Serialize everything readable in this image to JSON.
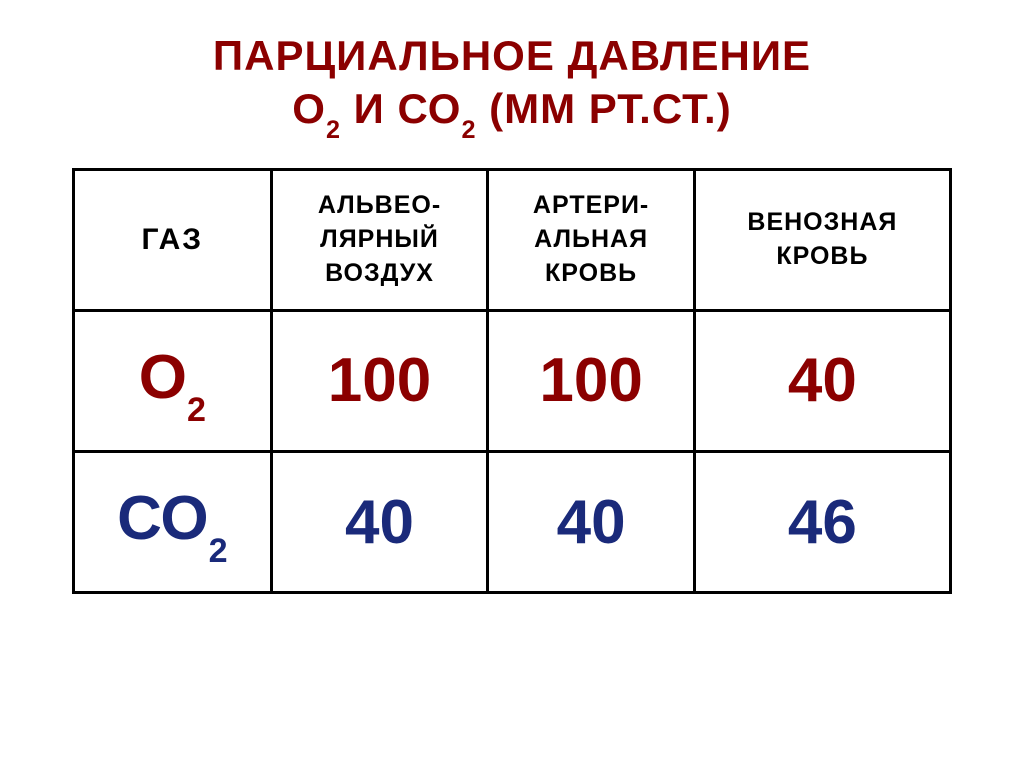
{
  "title": {
    "line1": "ПАРЦИАЛЬНОЕ ДАВЛЕНИЕ",
    "line2_pre": "О",
    "line2_o2_sub": "2",
    "line2_mid": " И СО",
    "line2_co2_sub": "2",
    "line2_post": " (ММ РТ.СТ.)",
    "color": "#8b0000",
    "fontsize": 42
  },
  "table": {
    "border_color": "#000000",
    "border_width": 3,
    "header_color": "#000000",
    "header_fontsize": 25,
    "gas_header_fontsize": 30,
    "cell_fontsize": 62,
    "columns": [
      {
        "label_lines": [
          "ГАЗ"
        ]
      },
      {
        "label_lines": [
          "АЛЬВЕО-",
          "ЛЯРНЫЙ",
          "ВОЗДУХ"
        ]
      },
      {
        "label_lines": [
          "АРТЕРИ-",
          "АЛЬНАЯ",
          "КРОВЬ"
        ]
      },
      {
        "label_lines": [
          "ВЕНОЗНАЯ",
          "КРОВЬ"
        ]
      }
    ],
    "rows": [
      {
        "gas_base": "О",
        "gas_sub": "2",
        "color": "#8b0000",
        "values": [
          "100",
          "100",
          "40"
        ]
      },
      {
        "gas_base": "СО",
        "gas_sub": "2",
        "color": "#1a2a7a",
        "values": [
          "40",
          "40",
          "46"
        ]
      }
    ]
  },
  "background_color": "#ffffff"
}
